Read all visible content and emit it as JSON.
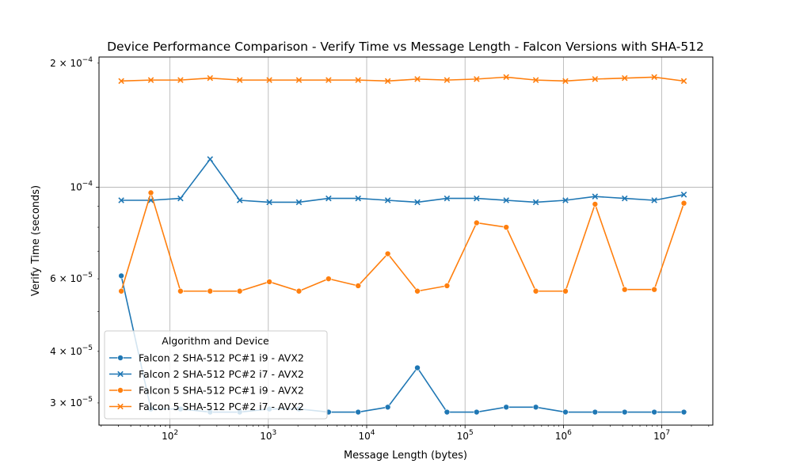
{
  "chart_data": {
    "type": "line",
    "title": "Device Performance Comparison - Verify Time vs Message Length - Falcon Versions with SHA-512",
    "xlabel": "Message Length (bytes)",
    "ylabel": "Verify Time (seconds)",
    "xscale": "log",
    "yscale": "log",
    "xlim": [
      19,
      33000000
    ],
    "ylim": [
      2.65e-05,
      0.000207
    ],
    "grid": true,
    "x_ticks": [
      {
        "value": 100,
        "base": "10",
        "exp": "2"
      },
      {
        "value": 1000,
        "base": "10",
        "exp": "3"
      },
      {
        "value": 10000,
        "base": "10",
        "exp": "4"
      },
      {
        "value": 100000,
        "base": "10",
        "exp": "5"
      },
      {
        "value": 1000000,
        "base": "10",
        "exp": "6"
      },
      {
        "value": 10000000,
        "base": "10",
        "exp": "7"
      }
    ],
    "y_ticks": [
      {
        "value": 0.0002,
        "mant": "2 × 10",
        "exp": "−4"
      },
      {
        "value": 0.0001,
        "mant": "10",
        "exp": "−4"
      },
      {
        "value": 6e-05,
        "mant": "6 × 10",
        "exp": "−5"
      },
      {
        "value": 4e-05,
        "mant": "4 × 10",
        "exp": "−5"
      },
      {
        "value": 3e-05,
        "mant": "3 × 10",
        "exp": "−5"
      }
    ],
    "legend": {
      "title": "Algorithm and Device",
      "position": "lower-left"
    },
    "x": [
      32,
      64,
      128,
      256,
      512,
      1024,
      2048,
      4096,
      8192,
      16384,
      32768,
      65536,
      131072,
      262144,
      524288,
      1048576,
      2097152,
      4194304,
      8388608,
      16777216
    ],
    "series": [
      {
        "name": "Falcon 2 SHA-512 PC#1 i9 - AVX2",
        "color": "#1f77b4",
        "marker": "circle",
        "values": [
          6.1e-05,
          2.9e-05,
          2.9e-05,
          2.85e-05,
          2.85e-05,
          2.9e-05,
          2.9e-05,
          2.85e-05,
          2.85e-05,
          2.93e-05,
          3.65e-05,
          2.85e-05,
          2.85e-05,
          2.93e-05,
          2.93e-05,
          2.85e-05,
          2.85e-05,
          2.85e-05,
          2.85e-05,
          2.85e-05
        ]
      },
      {
        "name": "Falcon 2 SHA-512 PC#2 i7 - AVX2",
        "color": "#1f77b4",
        "marker": "x",
        "values": [
          9.3e-05,
          9.3e-05,
          9.4e-05,
          0.000117,
          9.3e-05,
          9.2e-05,
          9.2e-05,
          9.4e-05,
          9.4e-05,
          9.3e-05,
          9.2e-05,
          9.4e-05,
          9.4e-05,
          9.3e-05,
          9.2e-05,
          9.3e-05,
          9.5e-05,
          9.4e-05,
          9.3e-05,
          9.6e-05
        ]
      },
      {
        "name": "Falcon 5 SHA-512 PC#1 i9 - AVX2",
        "color": "#ff7f0e",
        "marker": "circle",
        "values": [
          5.6e-05,
          9.7e-05,
          5.6e-05,
          5.6e-05,
          5.6e-05,
          5.9e-05,
          5.6e-05,
          6e-05,
          5.77e-05,
          6.9e-05,
          5.6e-05,
          5.77e-05,
          8.2e-05,
          8e-05,
          5.6e-05,
          5.6e-05,
          9.1e-05,
          5.65e-05,
          5.65e-05,
          9.15e-05
        ]
      },
      {
        "name": "Falcon 5 SHA-512 PC#2 i7 - AVX2",
        "color": "#ff7f0e",
        "marker": "x",
        "values": [
          0.000181,
          0.000182,
          0.000182,
          0.000184,
          0.000182,
          0.000182,
          0.000182,
          0.000182,
          0.000182,
          0.000181,
          0.000183,
          0.000182,
          0.000183,
          0.000185,
          0.000182,
          0.000181,
          0.000183,
          0.000184,
          0.000185,
          0.000181
        ]
      }
    ]
  }
}
